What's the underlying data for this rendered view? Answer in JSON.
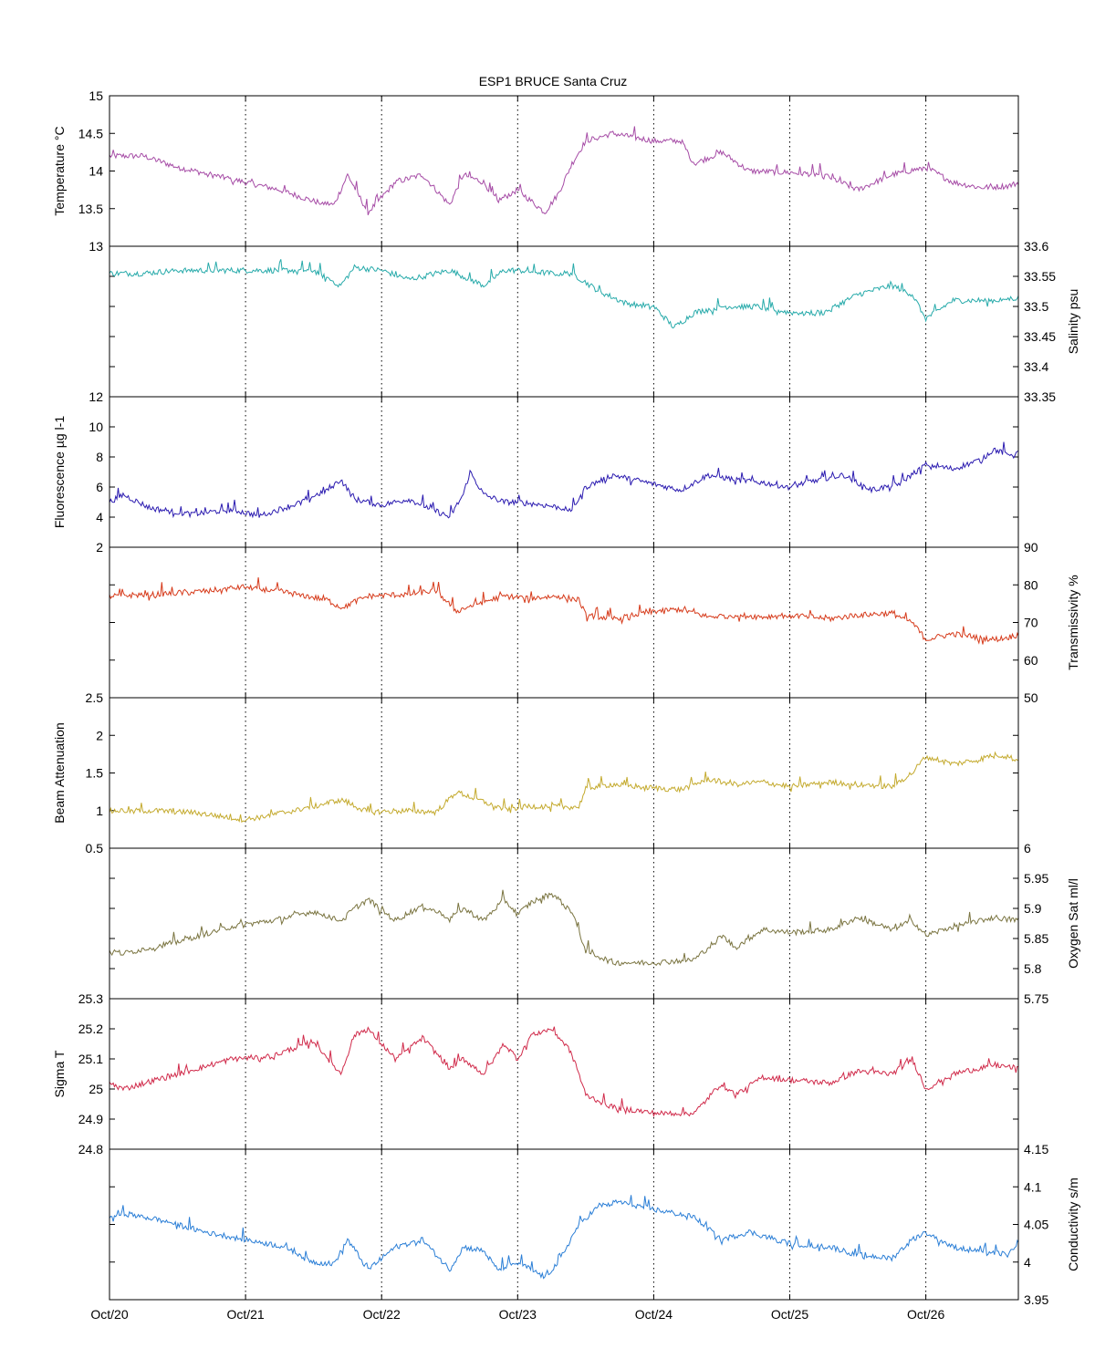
{
  "title": "ESP1 BRUCE Santa Cruz",
  "x_tick_labels": [
    "Oct/20",
    "Oct/21",
    "Oct/22",
    "Oct/23",
    "Oct/24",
    "Oct/25",
    "Oct/26"
  ],
  "chart_data": [
    {
      "type": "line",
      "ylabel": "Temperature °C",
      "ylabel_side": "left",
      "color": "#a64ca6",
      "ylim": [
        13,
        15
      ],
      "yticks": [
        "13",
        "13.5",
        "14",
        "14.5",
        "15"
      ],
      "series": [
        {
          "x": [
            0,
            0.25,
            0.5,
            0.75,
            1.0,
            1.25,
            1.5,
            1.65,
            1.75,
            1.9,
            2.1,
            2.3,
            2.5,
            2.6,
            2.75,
            2.85,
            3.0,
            3.2,
            3.3,
            3.4,
            3.5,
            3.7,
            4.0,
            4.2,
            4.3,
            4.5,
            4.7,
            5.0,
            5.25,
            5.5,
            5.75,
            6.0,
            6.2,
            6.4,
            6.6,
            6.7
          ],
          "values": [
            14.2,
            14.2,
            14.05,
            13.95,
            13.85,
            13.75,
            13.6,
            13.55,
            13.95,
            13.45,
            13.85,
            13.95,
            13.55,
            13.95,
            13.85,
            13.6,
            13.75,
            13.45,
            13.7,
            14.1,
            14.4,
            14.5,
            14.4,
            14.4,
            14.1,
            14.25,
            14.0,
            13.98,
            13.95,
            13.75,
            13.95,
            14.05,
            13.85,
            13.78,
            13.8,
            13.85
          ]
        }
      ]
    },
    {
      "type": "line",
      "ylabel": "Salinity psu",
      "ylabel_side": "right",
      "color": "#27aaaa",
      "ylim": [
        33.35,
        33.6
      ],
      "yticks": [
        "33.35",
        "33.4",
        "33.45",
        "33.5",
        "33.55",
        "33.6"
      ],
      "series": [
        {
          "x": [
            0,
            0.25,
            0.5,
            1.0,
            1.25,
            1.5,
            1.7,
            1.8,
            2.0,
            2.2,
            2.5,
            2.75,
            2.9,
            3.0,
            3.25,
            3.4,
            3.6,
            3.8,
            4.0,
            4.15,
            4.3,
            4.5,
            4.75,
            5.0,
            5.25,
            5.5,
            5.75,
            5.9,
            6.0,
            6.2,
            6.5,
            6.7
          ],
          "values": [
            33.555,
            33.555,
            33.56,
            33.56,
            33.56,
            33.56,
            33.535,
            33.565,
            33.56,
            33.545,
            33.56,
            33.535,
            33.56,
            33.56,
            33.555,
            33.555,
            33.525,
            33.505,
            33.5,
            33.465,
            33.49,
            33.5,
            33.5,
            33.49,
            33.49,
            33.52,
            33.535,
            33.52,
            33.48,
            33.51,
            33.51,
            33.515
          ]
        }
      ]
    },
    {
      "type": "line",
      "ylabel": "Fluorescence µg l-1",
      "ylabel_side": "left",
      "color": "#2b1bb0",
      "ylim": [
        2,
        12
      ],
      "yticks": [
        "2",
        "4",
        "6",
        "8",
        "10",
        "12"
      ],
      "series": [
        {
          "x": [
            0,
            0.1,
            0.3,
            0.6,
            0.9,
            1.1,
            1.35,
            1.6,
            1.7,
            1.8,
            2.0,
            2.2,
            2.5,
            2.6,
            2.65,
            2.75,
            2.9,
            3.0,
            3.2,
            3.4,
            3.5,
            3.7,
            4.0,
            4.2,
            4.4,
            4.6,
            4.8,
            5.0,
            5.2,
            5.4,
            5.6,
            5.8,
            6.0,
            6.2,
            6.4,
            6.5,
            6.6,
            6.7
          ],
          "values": [
            5.0,
            5.5,
            4.6,
            4.2,
            4.5,
            4.1,
            4.8,
            5.8,
            6.5,
            5.2,
            4.8,
            5.2,
            4.0,
            5.5,
            7.0,
            5.5,
            5.0,
            5.0,
            4.8,
            4.5,
            6.0,
            6.8,
            6.2,
            5.8,
            6.8,
            6.5,
            6.3,
            6.0,
            6.5,
            6.8,
            5.8,
            6.2,
            7.5,
            7.2,
            7.8,
            8.5,
            8.2,
            8.3
          ]
        }
      ]
    },
    {
      "type": "line",
      "ylabel": "Transmissivity %",
      "ylabel_side": "right",
      "color": "#d63a1a",
      "ylim": [
        50,
        90
      ],
      "yticks": [
        "50",
        "60",
        "70",
        "80",
        "90"
      ],
      "series": [
        {
          "x": [
            0,
            0.3,
            0.6,
            1.0,
            1.3,
            1.6,
            1.7,
            1.9,
            2.2,
            2.4,
            2.55,
            2.7,
            2.9,
            3.1,
            3.3,
            3.45,
            3.5,
            3.7,
            4.0,
            4.2,
            4.4,
            4.6,
            4.8,
            5.0,
            5.3,
            5.5,
            5.75,
            5.9,
            6.0,
            6.2,
            6.4,
            6.5,
            6.6,
            6.7
          ],
          "values": [
            77,
            77.5,
            78,
            79.5,
            78,
            76,
            74,
            77,
            77.5,
            78.5,
            73,
            75,
            77,
            76.5,
            77,
            76,
            72,
            71,
            73,
            73.5,
            71.5,
            72,
            71.5,
            72,
            71,
            72,
            72.5,
            70,
            65.5,
            67,
            66,
            65.5,
            66,
            67
          ]
        }
      ]
    },
    {
      "type": "line",
      "ylabel": "Beam Attenuation",
      "ylabel_side": "left",
      "color": "#c4aa2e",
      "ylim": [
        0.5,
        2.5
      ],
      "yticks": [
        "0.5",
        "1",
        "1.5",
        "2",
        "2.5"
      ],
      "series": [
        {
          "x": [
            0,
            0.3,
            0.6,
            1.0,
            1.3,
            1.6,
            1.7,
            1.9,
            2.2,
            2.4,
            2.55,
            2.7,
            2.9,
            3.1,
            3.3,
            3.45,
            3.5,
            3.7,
            4.0,
            4.2,
            4.4,
            4.6,
            4.8,
            5.0,
            5.3,
            5.5,
            5.75,
            5.9,
            6.0,
            6.2,
            6.4,
            6.5,
            6.6,
            6.7
          ],
          "values": [
            1.0,
            1.0,
            0.98,
            0.88,
            0.98,
            1.1,
            1.15,
            0.98,
            1.0,
            0.98,
            1.25,
            1.15,
            1.02,
            1.06,
            1.05,
            1.05,
            1.3,
            1.35,
            1.3,
            1.28,
            1.42,
            1.35,
            1.38,
            1.32,
            1.38,
            1.35,
            1.32,
            1.5,
            1.72,
            1.62,
            1.68,
            1.75,
            1.72,
            1.65
          ]
        }
      ]
    },
    {
      "type": "line",
      "ylabel": "Oxygen Sat ml/l",
      "ylabel_side": "right",
      "color": "#7a7440",
      "ylim": [
        5.75,
        6
      ],
      "yticks": [
        "5.75",
        "5.8",
        "5.85",
        "5.9",
        "5.95",
        "6"
      ],
      "series": [
        {
          "x": [
            0,
            0.1,
            0.5,
            0.9,
            1.2,
            1.5,
            1.7,
            1.8,
            1.9,
            2.1,
            2.3,
            2.5,
            2.6,
            2.75,
            2.9,
            3.0,
            3.1,
            3.25,
            3.4,
            3.5,
            3.7,
            4.0,
            4.3,
            4.5,
            4.6,
            4.8,
            5.0,
            5.3,
            5.5,
            5.75,
            5.9,
            6.0,
            6.2,
            6.5,
            6.7
          ],
          "values": [
            5.83,
            5.825,
            5.845,
            5.87,
            5.88,
            5.895,
            5.88,
            5.9,
            5.915,
            5.88,
            5.905,
            5.885,
            5.9,
            5.88,
            5.915,
            5.89,
            5.91,
            5.925,
            5.895,
            5.83,
            5.81,
            5.81,
            5.815,
            5.855,
            5.835,
            5.865,
            5.86,
            5.865,
            5.885,
            5.865,
            5.88,
            5.855,
            5.87,
            5.885,
            5.88
          ]
        }
      ]
    },
    {
      "type": "line",
      "ylabel": "Sigma T",
      "ylabel_side": "left",
      "color": "#d02a4a",
      "ylim": [
        24.8,
        25.3
      ],
      "yticks": [
        "24.8",
        "24.9",
        "25",
        "25.1",
        "25.2",
        "25.3"
      ],
      "series": [
        {
          "x": [
            0,
            0.1,
            0.5,
            0.9,
            1.2,
            1.5,
            1.7,
            1.8,
            1.9,
            2.1,
            2.3,
            2.5,
            2.6,
            2.75,
            2.9,
            3.0,
            3.1,
            3.25,
            3.4,
            3.5,
            3.7,
            4.0,
            4.3,
            4.5,
            4.6,
            4.8,
            5.0,
            5.3,
            5.5,
            5.75,
            5.9,
            6.0,
            6.2,
            6.5,
            6.7
          ],
          "values": [
            25.02,
            25.0,
            25.05,
            25.1,
            25.11,
            25.16,
            25.05,
            25.18,
            25.2,
            25.1,
            25.17,
            25.07,
            25.1,
            25.05,
            25.15,
            25.1,
            25.18,
            25.2,
            25.12,
            24.98,
            24.94,
            24.92,
            24.92,
            25.02,
            24.98,
            25.04,
            25.03,
            25.02,
            25.06,
            25.05,
            25.1,
            25.0,
            25.05,
            25.08,
            25.07
          ]
        }
      ]
    },
    {
      "type": "line",
      "ylabel": "Conductivity s/m",
      "ylabel_side": "right",
      "color": "#2a7ed6",
      "ylim": [
        3.95,
        4.15
      ],
      "yticks": [
        "3.95",
        "4",
        "4.05",
        "4.1",
        "4.15"
      ],
      "series": [
        {
          "x": [
            0,
            0.1,
            0.4,
            0.7,
            1.0,
            1.3,
            1.5,
            1.65,
            1.75,
            1.9,
            2.1,
            2.3,
            2.5,
            2.6,
            2.75,
            2.85,
            3.0,
            3.2,
            3.3,
            3.45,
            3.6,
            3.75,
            4.0,
            4.3,
            4.5,
            4.7,
            5.0,
            5.3,
            5.5,
            5.75,
            5.9,
            6.0,
            6.2,
            6.4,
            6.6,
            6.7
          ],
          "values": [
            4.06,
            4.065,
            4.055,
            4.04,
            4.03,
            4.02,
            4.0,
            3.998,
            4.03,
            3.99,
            4.02,
            4.03,
            3.99,
            4.02,
            4.015,
            3.99,
            4.0,
            3.98,
            4.0,
            4.05,
            4.075,
            4.08,
            4.07,
            4.06,
            4.03,
            4.04,
            4.025,
            4.02,
            4.01,
            4.005,
            4.03,
            4.04,
            4.02,
            4.015,
            4.01,
            4.025
          ]
        }
      ]
    }
  ]
}
